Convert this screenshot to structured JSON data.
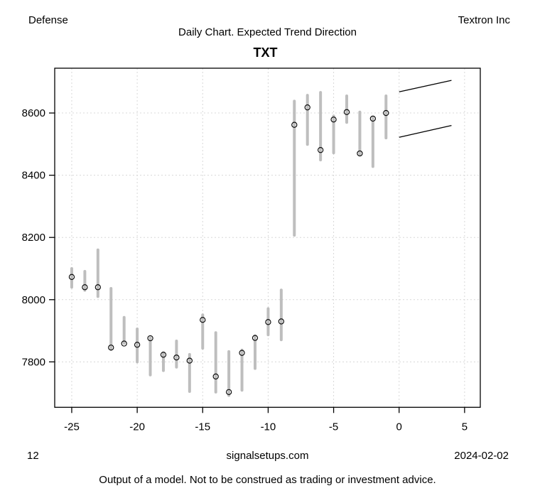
{
  "header": {
    "sector": "Defense",
    "company": "Textron Inc",
    "subtitle": "Daily Chart. Expected Trend Direction",
    "title": "TXT"
  },
  "footer": {
    "page_number": "12",
    "website": "signalsetups.com",
    "date": "2024-02-02",
    "disclaimer": "Output of a model. Not to be construed as trading or investment advice."
  },
  "chart_data": {
    "type": "bar",
    "subtype": "high-low range bars with open-circle close markers and forecast fan lines",
    "title": "TXT",
    "xlabel": "",
    "ylabel": "",
    "xlim": [
      -26.3,
      6.2
    ],
    "ylim": [
      7654,
      8744
    ],
    "x_ticks": [
      -25,
      -20,
      -15,
      -10,
      -5,
      0,
      5
    ],
    "y_ticks": [
      7800,
      8000,
      8200,
      8400,
      8600
    ],
    "grid": true,
    "legend": false,
    "bars": [
      {
        "x": -25,
        "low": 8040,
        "high": 8100,
        "close": 8073
      },
      {
        "x": -24,
        "low": 8030,
        "high": 8091,
        "close": 8040
      },
      {
        "x": -23,
        "low": 8010,
        "high": 8160,
        "close": 8040
      },
      {
        "x": -22,
        "low": 7840,
        "high": 8036,
        "close": 7846
      },
      {
        "x": -21,
        "low": 7860,
        "high": 7943,
        "close": 7859
      },
      {
        "x": -20,
        "low": 7800,
        "high": 7906,
        "close": 7855
      },
      {
        "x": -19,
        "low": 7758,
        "high": 7878,
        "close": 7876
      },
      {
        "x": -18,
        "low": 7772,
        "high": 7829,
        "close": 7823
      },
      {
        "x": -17,
        "low": 7783,
        "high": 7867,
        "close": 7814
      },
      {
        "x": -16,
        "low": 7705,
        "high": 7824,
        "close": 7804
      },
      {
        "x": -15,
        "low": 7844,
        "high": 7951,
        "close": 7935
      },
      {
        "x": -14,
        "low": 7703,
        "high": 7894,
        "close": 7753
      },
      {
        "x": -13,
        "low": 7692,
        "high": 7833,
        "close": 7703
      },
      {
        "x": -12,
        "low": 7709,
        "high": 7838,
        "close": 7829
      },
      {
        "x": -11,
        "low": 7779,
        "high": 7884,
        "close": 7877
      },
      {
        "x": -10,
        "low": 7887,
        "high": 7971,
        "close": 7928
      },
      {
        "x": -9,
        "low": 7871,
        "high": 8031,
        "close": 7930
      },
      {
        "x": -8,
        "low": 8207,
        "high": 8638,
        "close": 8562
      },
      {
        "x": -7,
        "low": 8499,
        "high": 8657,
        "close": 8618
      },
      {
        "x": -6,
        "low": 8449,
        "high": 8666,
        "close": 8481
      },
      {
        "x": -5,
        "low": 8472,
        "high": 8590,
        "close": 8579
      },
      {
        "x": -4,
        "low": 8570,
        "high": 8655,
        "close": 8603
      },
      {
        "x": -3,
        "low": 8465,
        "high": 8603,
        "close": 8470
      },
      {
        "x": -2,
        "low": 8428,
        "high": 8585,
        "close": 8582
      },
      {
        "x": -1,
        "low": 8520,
        "high": 8655,
        "close": 8600
      }
    ],
    "forecast_lines": [
      {
        "x1": 0,
        "y1": 8668,
        "x2": 4,
        "y2": 8705
      },
      {
        "x1": 0,
        "y1": 8522,
        "x2": 4,
        "y2": 8560
      }
    ],
    "colors": {
      "bar": "#BEBEBE",
      "close_marker_outline": "#000000",
      "grid": "#D8D8D8",
      "axis": "#000000",
      "forecast_line": "#000000",
      "background": "#FFFFFF"
    }
  }
}
